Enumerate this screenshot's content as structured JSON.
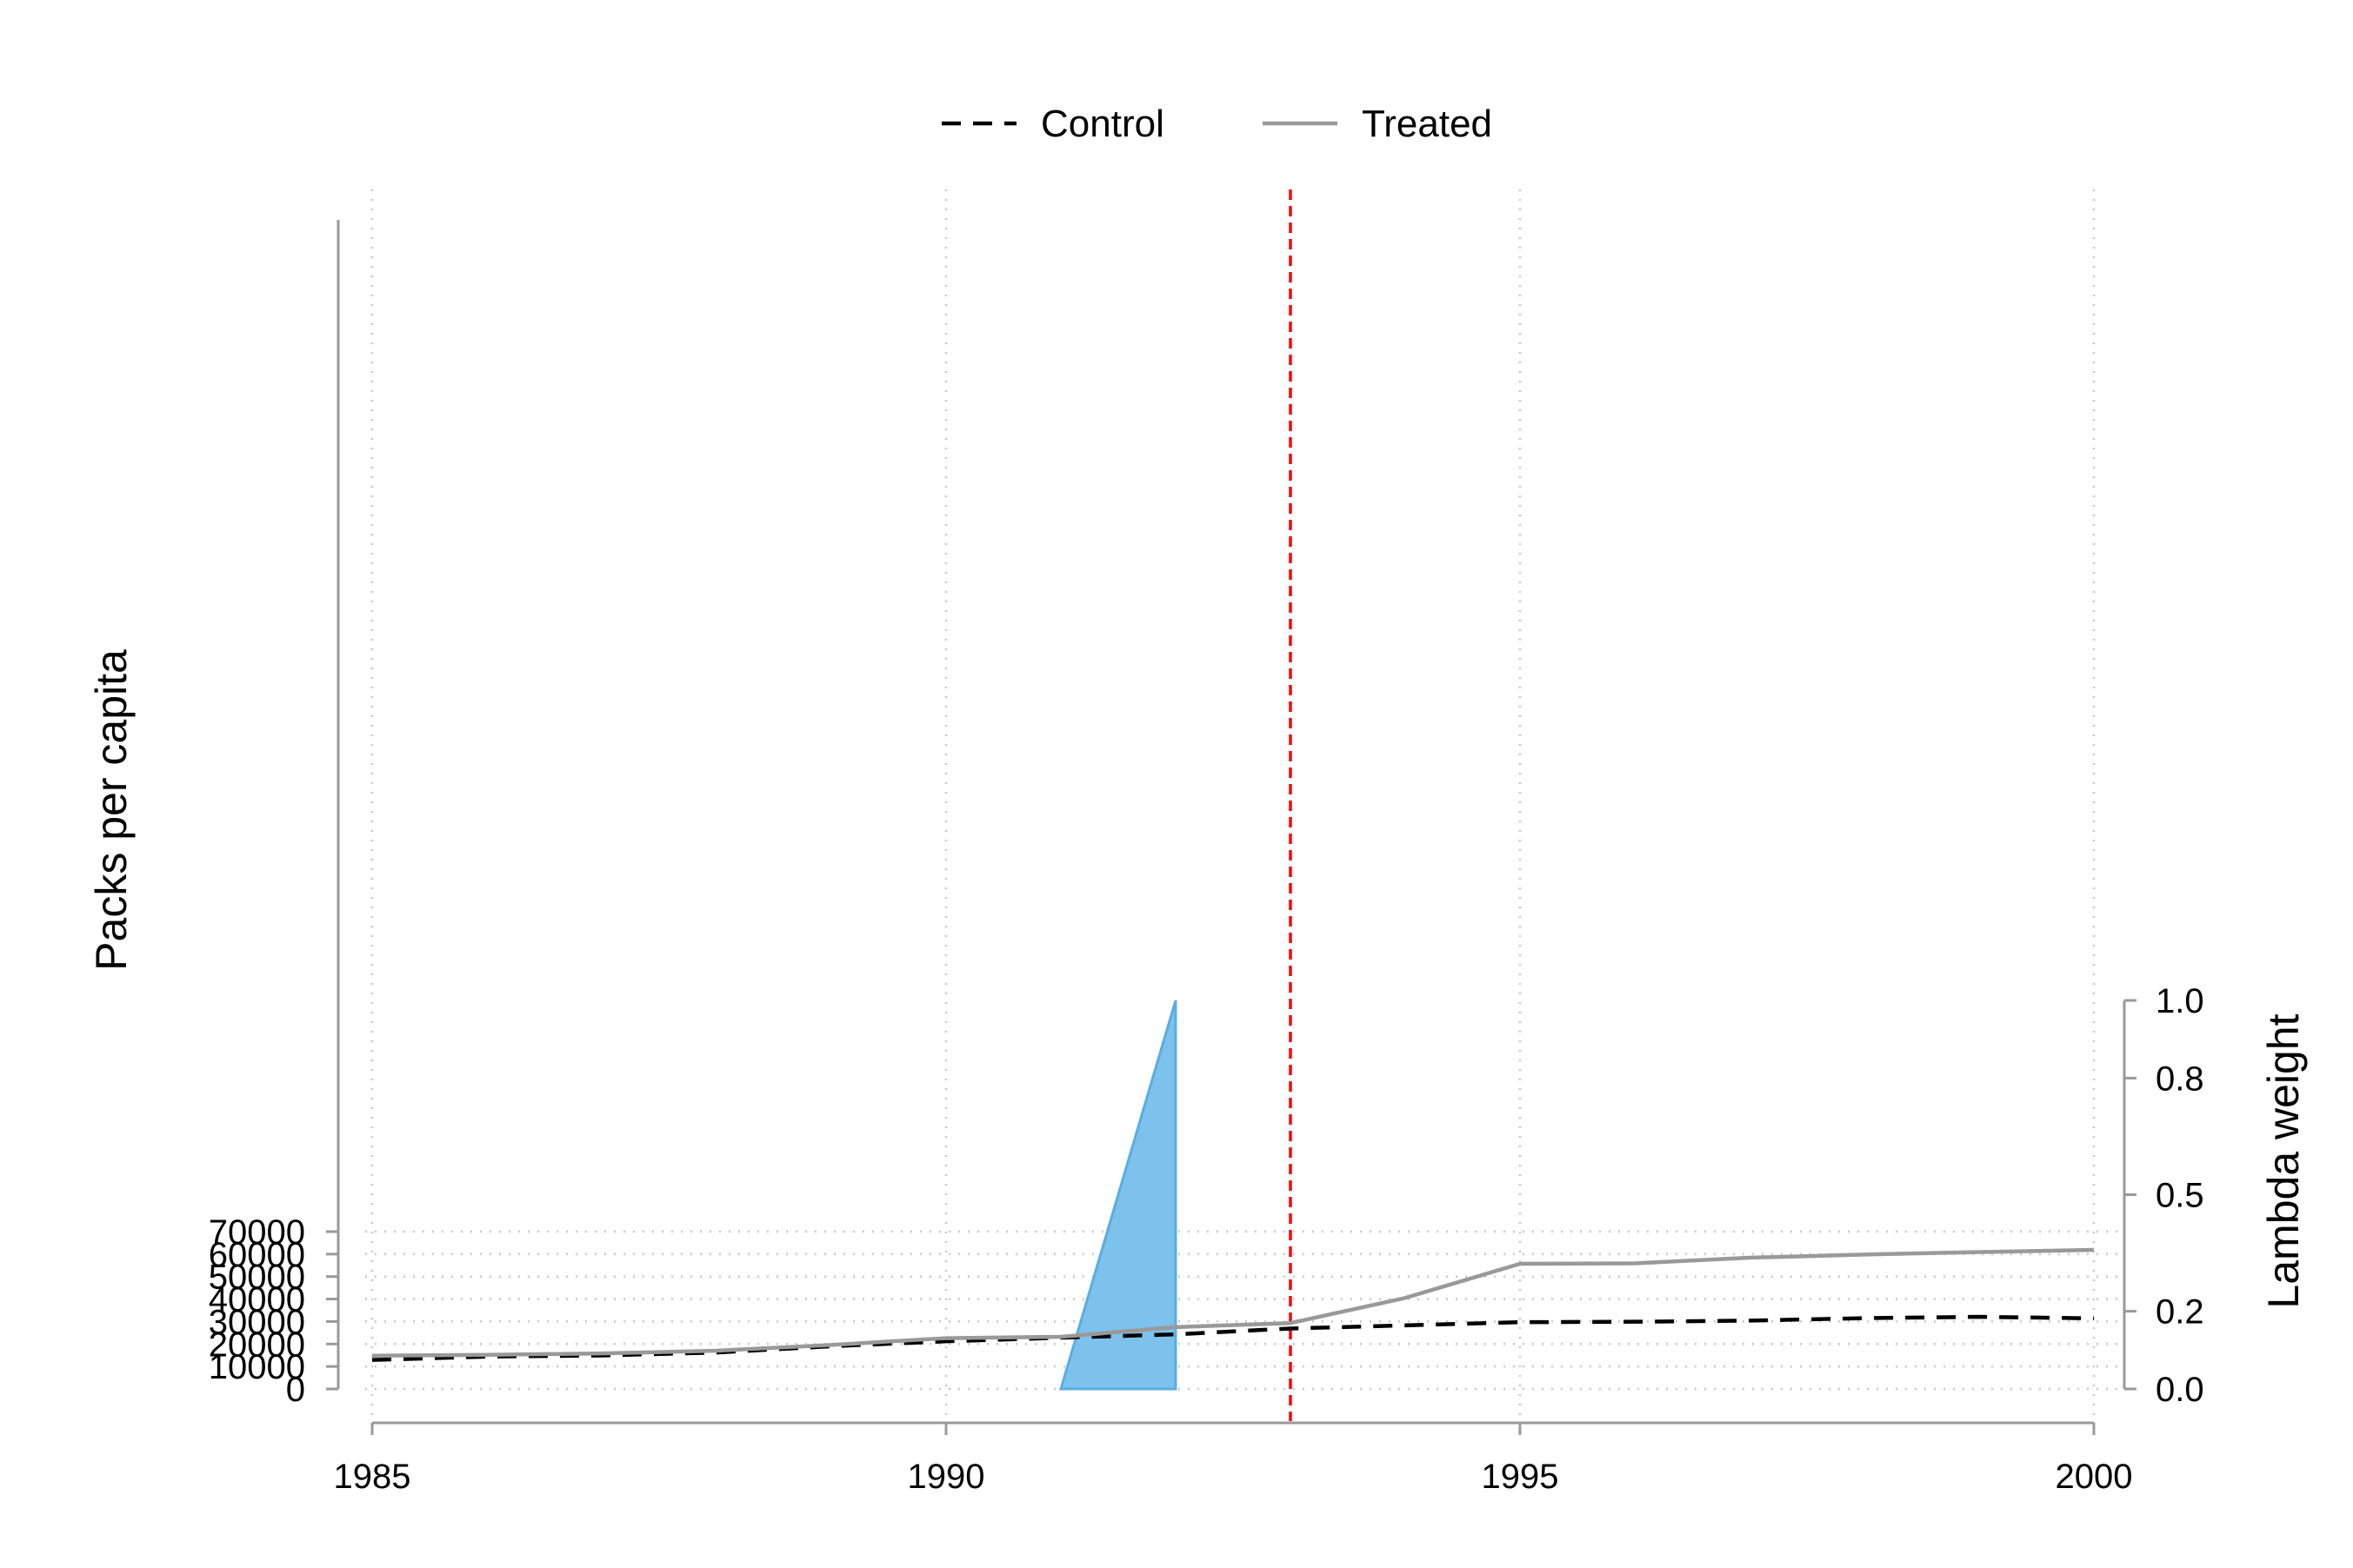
{
  "chart_data": {
    "type": "line",
    "title": "",
    "xlabel": "",
    "ylabel": "Packs per capita",
    "y2label": "Lambda weight",
    "x": [
      1985,
      1986,
      1987,
      1988,
      1989,
      1990,
      1991,
      1992,
      1993,
      1994,
      1995,
      1996,
      1997,
      1998,
      1999,
      2000
    ],
    "xlim": [
      1985,
      2000
    ],
    "ylim": [
      0,
      70000
    ],
    "y2lim": [
      0,
      1
    ],
    "x_ticks": [
      "1985",
      "1990",
      "1995",
      "2000"
    ],
    "y_ticks": [
      "0",
      "10000",
      "20000",
      "30000",
      "40000",
      "50000",
      "60000",
      "70000"
    ],
    "y2_ticks": [
      "0.0",
      "0.2",
      "0.5",
      "0.8",
      "1.0"
    ],
    "grid": true,
    "legend_position": "top-center",
    "treatment_year": 1993,
    "series": [
      {
        "name": "Control",
        "style": "dashed",
        "color": "#000000",
        "values": [
          12900,
          14400,
          14900,
          16200,
          19000,
          21200,
          22800,
          24300,
          26900,
          28300,
          29700,
          29900,
          30400,
          31500,
          32100,
          31400
        ]
      },
      {
        "name": "Treated",
        "style": "solid",
        "color": "#999999",
        "values": [
          14800,
          15200,
          15800,
          17000,
          19600,
          22600,
          23200,
          27500,
          29300,
          40500,
          55700,
          55900,
          58400,
          59800,
          60900,
          61900
        ]
      }
    ],
    "lambda_weights": {
      "axis": "y2",
      "color": "#7cc2ec",
      "points": [
        {
          "x": 1991,
          "y": 0
        },
        {
          "x": 1992,
          "y": 1
        },
        {
          "x": 1992,
          "y": 0
        }
      ]
    },
    "vline_color": "#ff0000"
  }
}
